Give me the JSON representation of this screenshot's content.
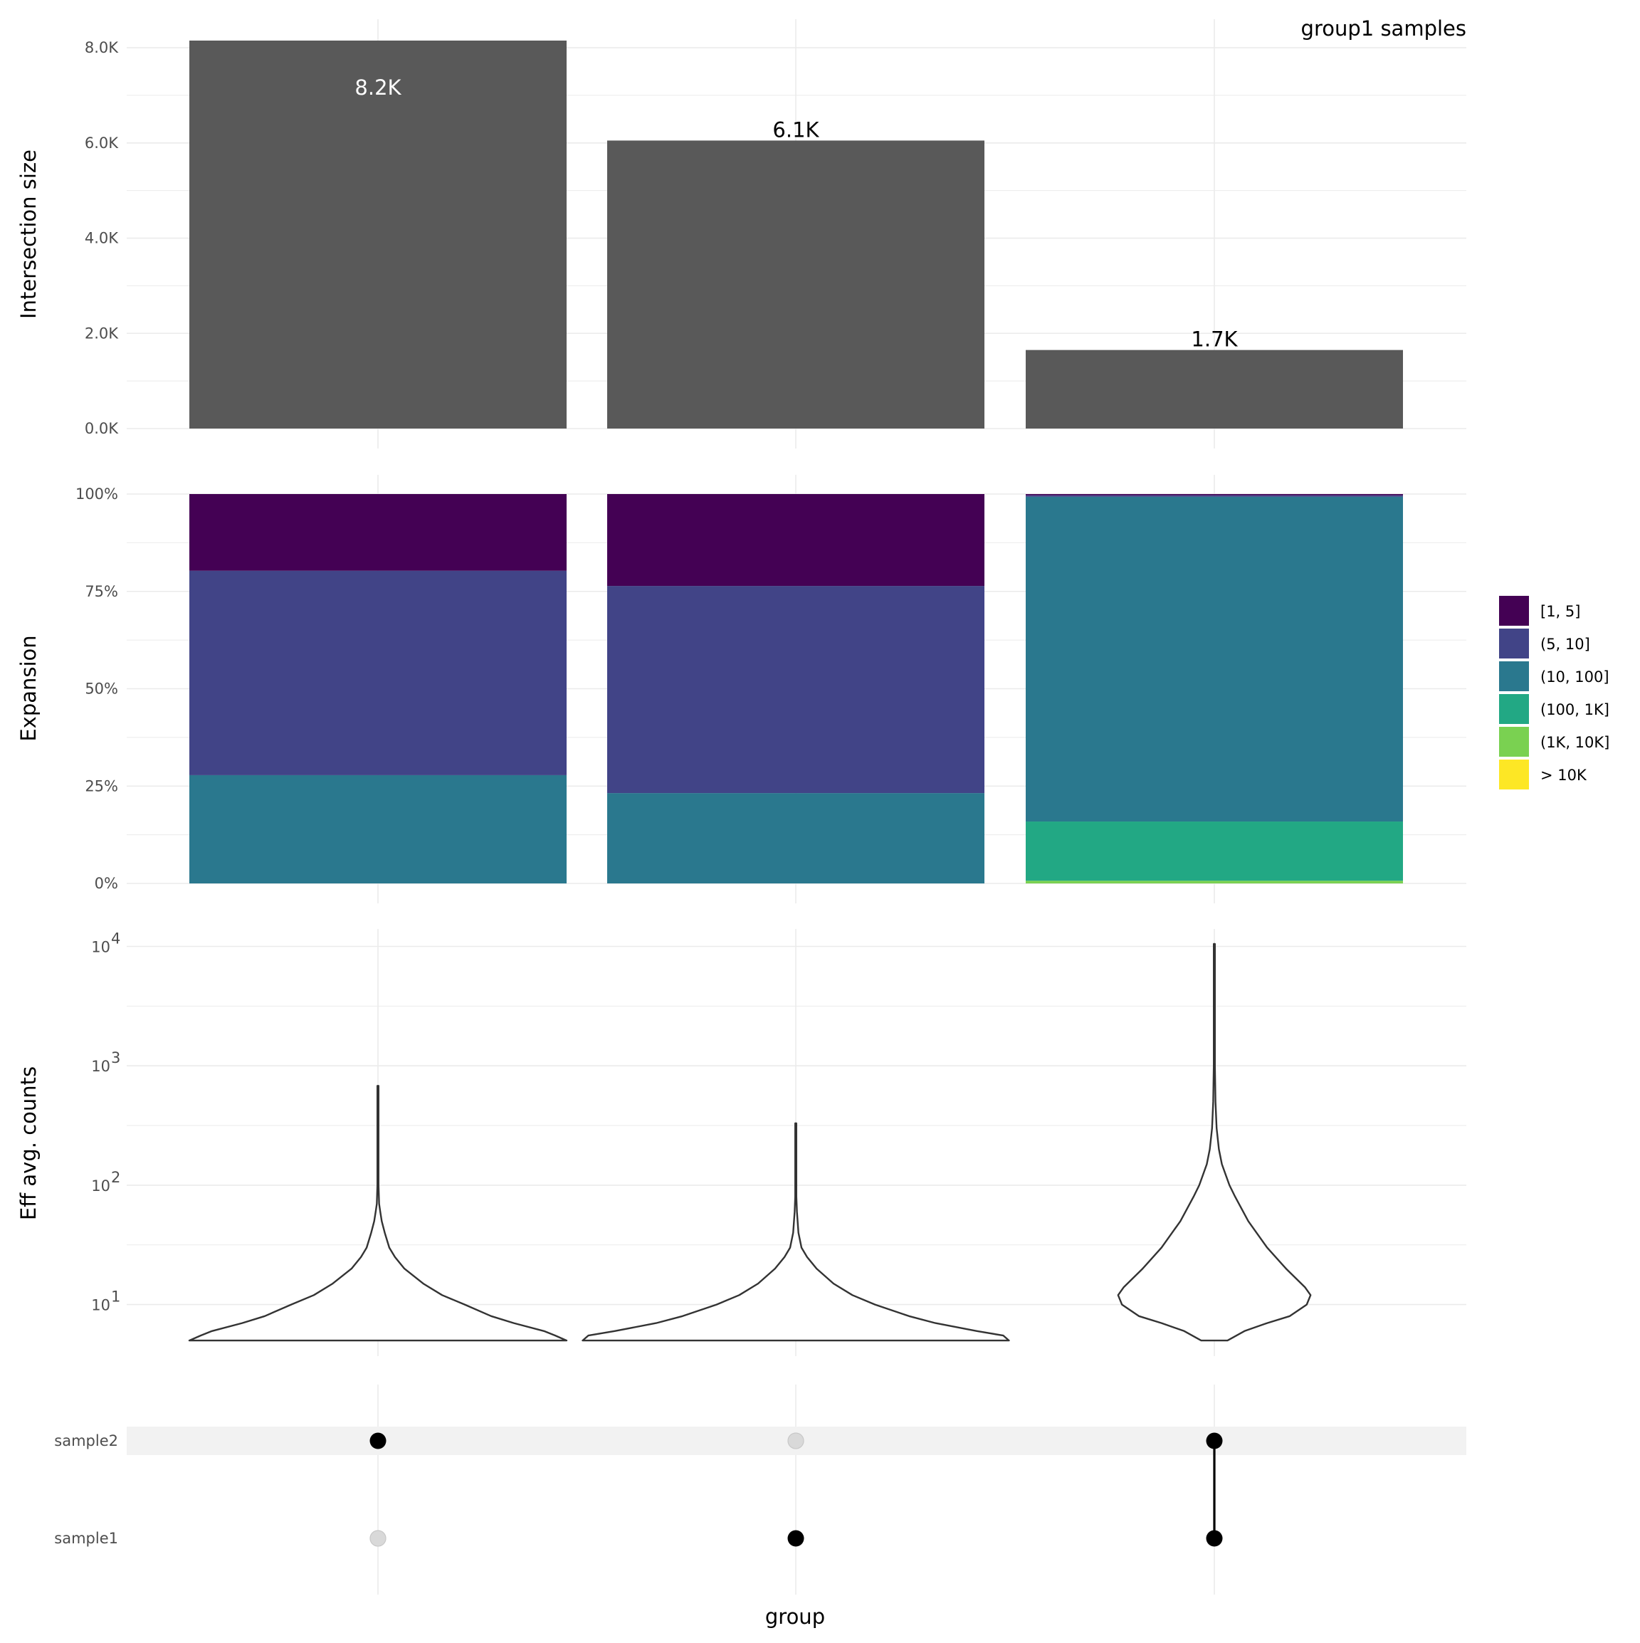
{
  "title": "group1 samples",
  "x_title": "group",
  "colors": {
    "bar": "#595959",
    "violin_stroke": "#333333",
    "dot_on": "#000000",
    "dot_off": "#d9d9d9",
    "matrix_stripe": "#f2f2f2"
  },
  "chart_data": [
    {
      "type": "bar",
      "panel": "intersection-size",
      "ylabel": "Intersection size",
      "categories": [
        "sample2",
        "sample1",
        "sample1 & sample2"
      ],
      "values": [
        8150,
        6050,
        1650
      ],
      "data_labels": [
        "8.2K",
        "6.1K",
        "1.7K"
      ],
      "data_label_colors": [
        "#ffffff",
        "#000000",
        "#000000"
      ],
      "ylim": [
        0,
        8150
      ],
      "yticks": [
        0,
        2000,
        4000,
        6000,
        8000
      ],
      "ytick_labels": [
        "0.0K",
        "2.0K",
        "4.0K",
        "6.0K",
        "8.0K"
      ],
      "grid": true
    },
    {
      "type": "bar",
      "stacked": true,
      "panel": "expansion",
      "ylabel": "Expansion",
      "categories": [
        "sample2",
        "sample1",
        "sample1 & sample2"
      ],
      "ylim": [
        0,
        1
      ],
      "yticks": [
        0,
        0.25,
        0.5,
        0.75,
        1
      ],
      "ytick_labels": [
        "0%",
        "25%",
        "50%",
        "75%",
        "100%"
      ],
      "legend_position": "right",
      "series": [
        {
          "name": "[1, 5]",
          "color": "#440154",
          "values": [
            0.197,
            0.236,
            0.003
          ]
        },
        {
          "name": "(5, 10]",
          "color": "#414487",
          "values": [
            0.525,
            0.532,
            0.004
          ]
        },
        {
          "name": "(10, 100]",
          "color": "#2a788e",
          "values": [
            0.278,
            0.232,
            0.834
          ]
        },
        {
          "name": "(100, 1K]",
          "color": "#22a884",
          "values": [
            0,
            0,
            0.152
          ]
        },
        {
          "name": "(1K, 10K]",
          "color": "#7ad151",
          "values": [
            0,
            0,
            0.007
          ]
        },
        {
          "name": "> 10K",
          "color": "#fde725",
          "values": [
            0,
            0,
            0
          ]
        }
      ],
      "grid": true
    },
    {
      "type": "violin",
      "panel": "eff-avg-counts",
      "ylabel": "Eff avg. counts",
      "y_scale": "log10",
      "categories": [
        "sample2",
        "sample1",
        "sample1 & sample2"
      ],
      "yticks": [
        10,
        100,
        1000,
        10000
      ],
      "ytick_labels": [
        "10",
        "10",
        "10",
        "10"
      ],
      "ytick_exponents": [
        "1",
        "2",
        "3",
        "4"
      ],
      "ylim": [
        3.7,
        14000
      ],
      "violins": [
        {
          "max": 680,
          "profile": [
            [
              5,
              0.5
            ],
            [
              5.5,
              0.47
            ],
            [
              6,
              0.44
            ],
            [
              7,
              0.36
            ],
            [
              8,
              0.3
            ],
            [
              10,
              0.23
            ],
            [
              12,
              0.17
            ],
            [
              15,
              0.12
            ],
            [
              20,
              0.07
            ],
            [
              25,
              0.045
            ],
            [
              30,
              0.03
            ],
            [
              40,
              0.018
            ],
            [
              50,
              0.01
            ],
            [
              60,
              0.006
            ],
            [
              70,
              0.003
            ],
            [
              100,
              0.0015
            ],
            [
              680,
              0.0015
            ]
          ]
        },
        {
          "max": 330,
          "profile": [
            [
              5,
              0.565
            ],
            [
              5.5,
              0.55
            ],
            [
              6,
              0.48
            ],
            [
              7,
              0.37
            ],
            [
              8,
              0.3
            ],
            [
              10,
              0.21
            ],
            [
              12,
              0.15
            ],
            [
              15,
              0.1
            ],
            [
              20,
              0.055
            ],
            [
              25,
              0.03
            ],
            [
              30,
              0.015
            ],
            [
              40,
              0.007
            ],
            [
              60,
              0.003
            ],
            [
              80,
              0.0015
            ],
            [
              330,
              0.0015
            ]
          ]
        },
        {
          "max": 10500,
          "profile": [
            [
              5,
              0.035
            ],
            [
              6,
              0.08
            ],
            [
              7,
              0.14
            ],
            [
              8,
              0.2
            ],
            [
              10,
              0.245
            ],
            [
              12,
              0.255
            ],
            [
              14,
              0.24
            ],
            [
              20,
              0.19
            ],
            [
              30,
              0.14
            ],
            [
              50,
              0.09
            ],
            [
              80,
              0.055
            ],
            [
              100,
              0.04
            ],
            [
              150,
              0.02
            ],
            [
              200,
              0.012
            ],
            [
              300,
              0.006
            ],
            [
              500,
              0.003
            ],
            [
              1000,
              0.0015
            ],
            [
              10500,
              0.0015
            ]
          ]
        }
      ]
    },
    {
      "type": "scatter",
      "panel": "matrix",
      "rows": [
        "sample2",
        "sample1"
      ],
      "membership": [
        {
          "sample2": true,
          "sample1": false
        },
        {
          "sample2": false,
          "sample1": true
        },
        {
          "sample2": true,
          "sample1": true
        }
      ]
    }
  ]
}
